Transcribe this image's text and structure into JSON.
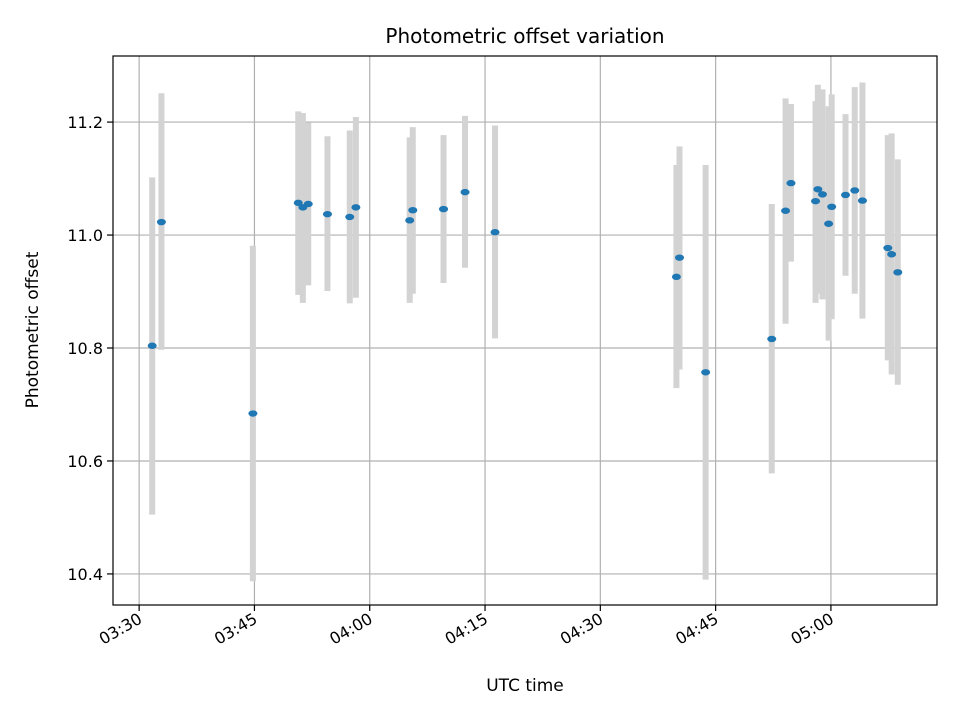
{
  "chart_data": {
    "type": "scatter",
    "title": "Photometric offset variation",
    "xlabel": "UTC time",
    "ylabel": "Photometric offset",
    "xlim": [
      "03:26.6",
      "05:13.8"
    ],
    "ylim": [
      10.345,
      11.317
    ],
    "grid": true,
    "x_ticks": [
      "03:30",
      "03:45",
      "04:00",
      "04:15",
      "04:30",
      "04:45",
      "05:00"
    ],
    "y_ticks": [
      10.4,
      10.6,
      10.8,
      11.0,
      11.2
    ],
    "y_tick_labels": [
      "10.4",
      "10.6",
      "10.8",
      "11.0",
      "11.2"
    ],
    "colors": {
      "points": "#1f77b4",
      "errorbars": "#d3d3d3",
      "grid": "#b0b0b0"
    },
    "points": [
      {
        "x": "03:31.7",
        "y": 10.804,
        "yerr_low": 10.505,
        "yerr_high": 11.102
      },
      {
        "x": "03:32.9",
        "y": 11.023,
        "yerr_low": 10.797,
        "yerr_high": 11.251
      },
      {
        "x": "03:44.8",
        "y": 10.684,
        "yerr_low": 10.387,
        "yerr_high": 10.981
      },
      {
        "x": "03:50.7",
        "y": 11.057,
        "yerr_low": 10.894,
        "yerr_high": 11.219
      },
      {
        "x": "03:51.3",
        "y": 11.049,
        "yerr_low": 10.88,
        "yerr_high": 11.216
      },
      {
        "x": "03:52.0",
        "y": 11.055,
        "yerr_low": 10.911,
        "yerr_high": 11.199
      },
      {
        "x": "03:54.5",
        "y": 11.037,
        "yerr_low": 10.901,
        "yerr_high": 11.175
      },
      {
        "x": "03:57.4",
        "y": 11.032,
        "yerr_low": 10.879,
        "yerr_high": 11.185
      },
      {
        "x": "03:58.2",
        "y": 11.049,
        "yerr_low": 10.889,
        "yerr_high": 11.209
      },
      {
        "x": "04:05.2",
        "y": 11.026,
        "yerr_low": 10.88,
        "yerr_high": 11.173
      },
      {
        "x": "04:05.6",
        "y": 11.044,
        "yerr_low": 10.896,
        "yerr_high": 11.191
      },
      {
        "x": "04:09.6",
        "y": 11.046,
        "yerr_low": 10.915,
        "yerr_high": 11.177
      },
      {
        "x": "04:12.4",
        "y": 11.076,
        "yerr_low": 10.942,
        "yerr_high": 11.211
      },
      {
        "x": "04:16.3",
        "y": 11.005,
        "yerr_low": 10.817,
        "yerr_high": 11.194
      },
      {
        "x": "04:39.9",
        "y": 10.926,
        "yerr_low": 10.729,
        "yerr_high": 11.124
      },
      {
        "x": "04:40.3",
        "y": 10.96,
        "yerr_low": 10.762,
        "yerr_high": 11.157
      },
      {
        "x": "04:43.7",
        "y": 10.757,
        "yerr_low": 10.39,
        "yerr_high": 11.124
      },
      {
        "x": "04:52.3",
        "y": 10.816,
        "yerr_low": 10.578,
        "yerr_high": 11.055
      },
      {
        "x": "04:54.1",
        "y": 11.043,
        "yerr_low": 10.843,
        "yerr_high": 11.242
      },
      {
        "x": "04:54.8",
        "y": 11.092,
        "yerr_low": 10.953,
        "yerr_high": 11.232
      },
      {
        "x": "04:58.0",
        "y": 11.06,
        "yerr_low": 10.88,
        "yerr_high": 11.237
      },
      {
        "x": "04:58.3",
        "y": 11.081,
        "yerr_low": 10.896,
        "yerr_high": 11.266
      },
      {
        "x": "04:58.9",
        "y": 11.072,
        "yerr_low": 10.886,
        "yerr_high": 11.258
      },
      {
        "x": "04:59.7",
        "y": 11.02,
        "yerr_low": 10.813,
        "yerr_high": 11.228
      },
      {
        "x": "05:00.1",
        "y": 11.05,
        "yerr_low": 10.851,
        "yerr_high": 11.249
      },
      {
        "x": "05:01.9",
        "y": 11.071,
        "yerr_low": 10.928,
        "yerr_high": 11.214
      },
      {
        "x": "05:03.1",
        "y": 11.079,
        "yerr_low": 10.896,
        "yerr_high": 11.262
      },
      {
        "x": "05:04.1",
        "y": 11.061,
        "yerr_low": 10.852,
        "yerr_high": 11.27
      },
      {
        "x": "05:07.4",
        "y": 10.977,
        "yerr_low": 10.778,
        "yerr_high": 11.177
      },
      {
        "x": "05:07.9",
        "y": 10.966,
        "yerr_low": 10.753,
        "yerr_high": 11.18
      },
      {
        "x": "05:08.7",
        "y": 10.934,
        "yerr_low": 10.735,
        "yerr_high": 11.134
      }
    ]
  }
}
